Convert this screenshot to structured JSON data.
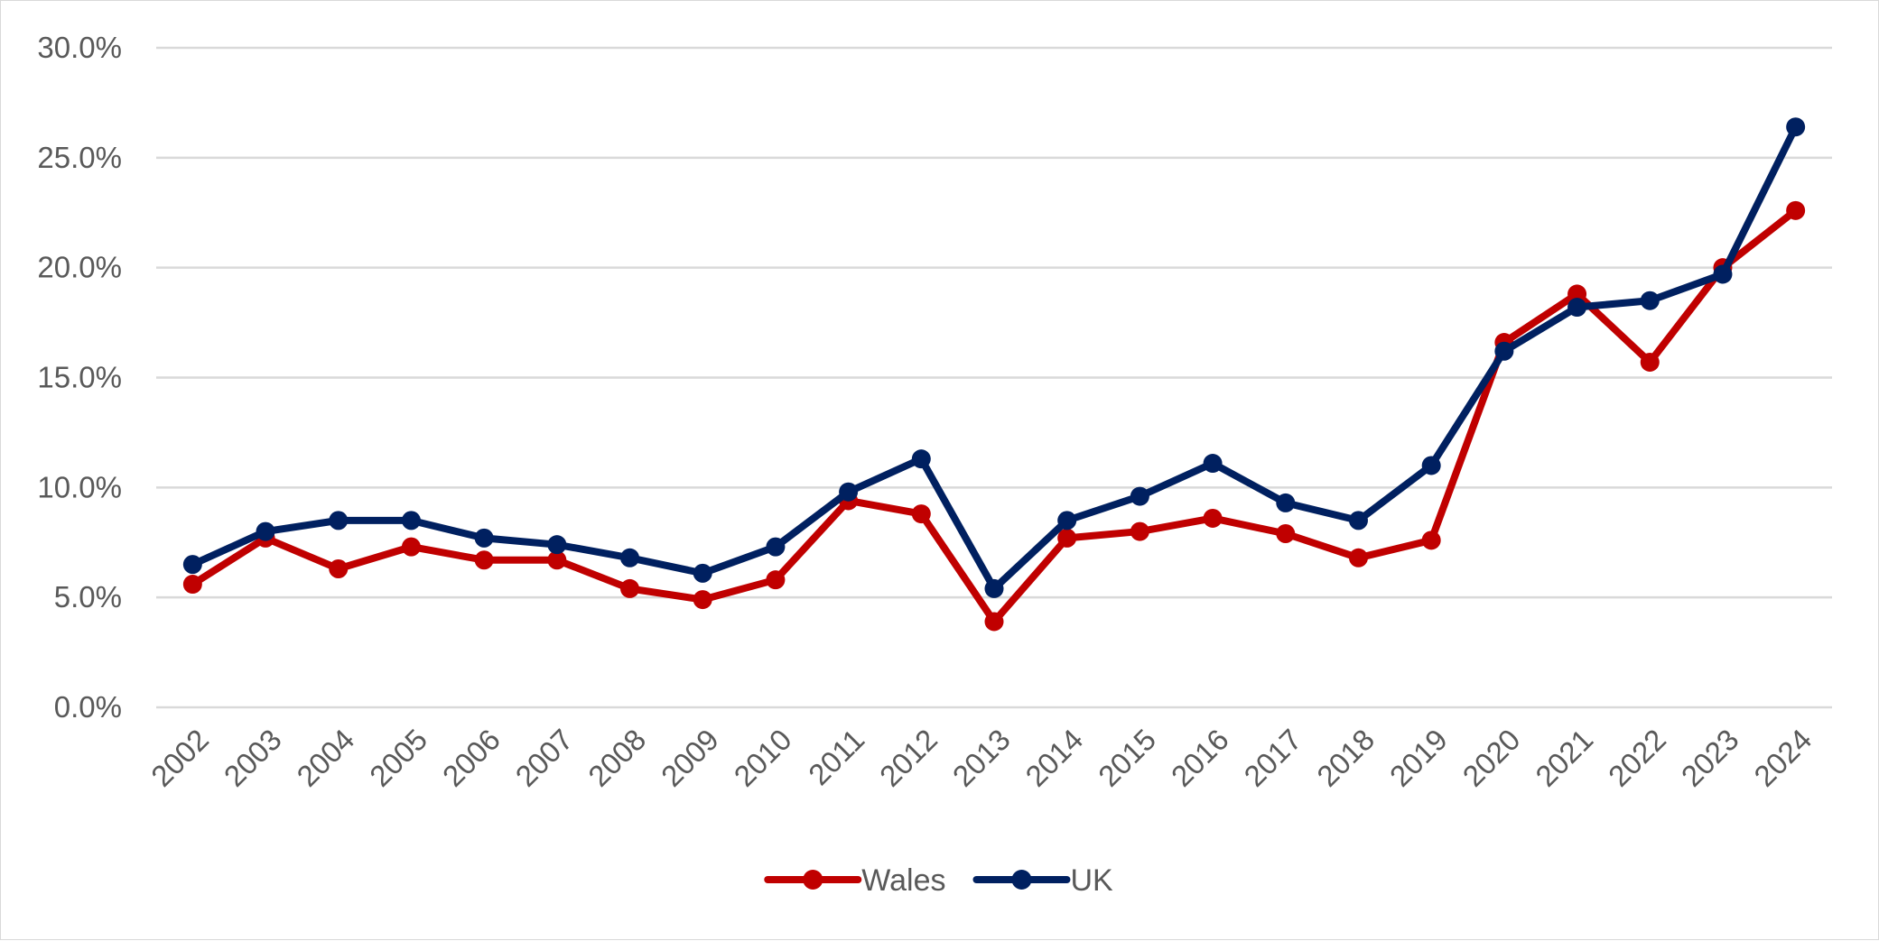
{
  "chart_data": {
    "type": "line",
    "title": "",
    "xlabel": "",
    "ylabel": "",
    "categories": [
      "2002",
      "2003",
      "2004",
      "2005",
      "2006",
      "2007",
      "2008",
      "2009",
      "2010",
      "2011",
      "2012",
      "2013",
      "2014",
      "2015",
      "2016",
      "2017",
      "2018",
      "2019",
      "2020",
      "2021",
      "2022",
      "2023",
      "2024"
    ],
    "y_ticks": [
      "0.0%",
      "5.0%",
      "10.0%",
      "15.0%",
      "20.0%",
      "25.0%",
      "30.0%"
    ],
    "ylim": [
      0,
      30
    ],
    "grid": true,
    "legend_position": "bottom",
    "series": [
      {
        "name": "Wales",
        "color": "#C00000",
        "values": [
          5.6,
          7.7,
          6.3,
          7.3,
          6.7,
          6.7,
          5.4,
          4.9,
          5.8,
          9.4,
          8.8,
          3.9,
          7.7,
          8.0,
          8.6,
          7.9,
          6.8,
          7.6,
          16.6,
          18.8,
          15.7,
          20.0,
          22.6
        ]
      },
      {
        "name": "UK",
        "color": "#002060",
        "values": [
          6.5,
          8.0,
          8.5,
          8.5,
          7.7,
          7.4,
          6.8,
          6.1,
          7.3,
          9.8,
          11.3,
          5.4,
          8.5,
          9.6,
          11.1,
          9.3,
          8.5,
          11.0,
          16.2,
          18.2,
          18.5,
          19.7,
          26.4
        ]
      }
    ]
  }
}
